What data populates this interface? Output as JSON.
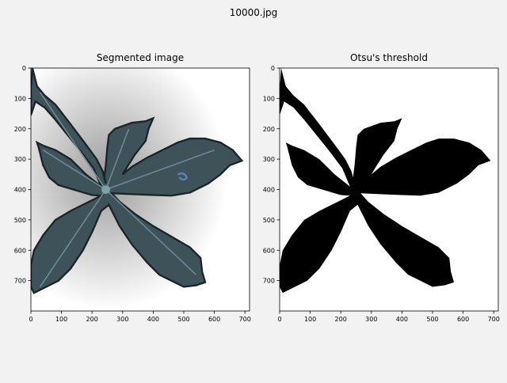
{
  "window": {
    "title": "10000.jpg",
    "background": "#f2f2f2"
  },
  "panels": [
    {
      "title": "Segmented image",
      "kind": "rgb-image",
      "xticks": [
        "0",
        "100",
        "200",
        "300",
        "400",
        "500",
        "600",
        "700"
      ],
      "yticks": [
        "0",
        "100",
        "200",
        "300",
        "400",
        "500",
        "600",
        "700"
      ],
      "colors": {
        "leaf": "#3e5259",
        "vein": "#6f8b92",
        "bg_center": "#b9b9b9",
        "bg_edge": "#ffffff"
      }
    },
    {
      "title": "Otsu's threshold",
      "kind": "binary-mask",
      "xticks": [
        "0",
        "100",
        "200",
        "300",
        "400",
        "500",
        "600",
        "700"
      ],
      "yticks": [
        "0",
        "100",
        "200",
        "300",
        "400",
        "500",
        "600",
        "700"
      ],
      "colors": {
        "leaf": "#000000",
        "bg": "#ffffff"
      }
    }
  ]
}
